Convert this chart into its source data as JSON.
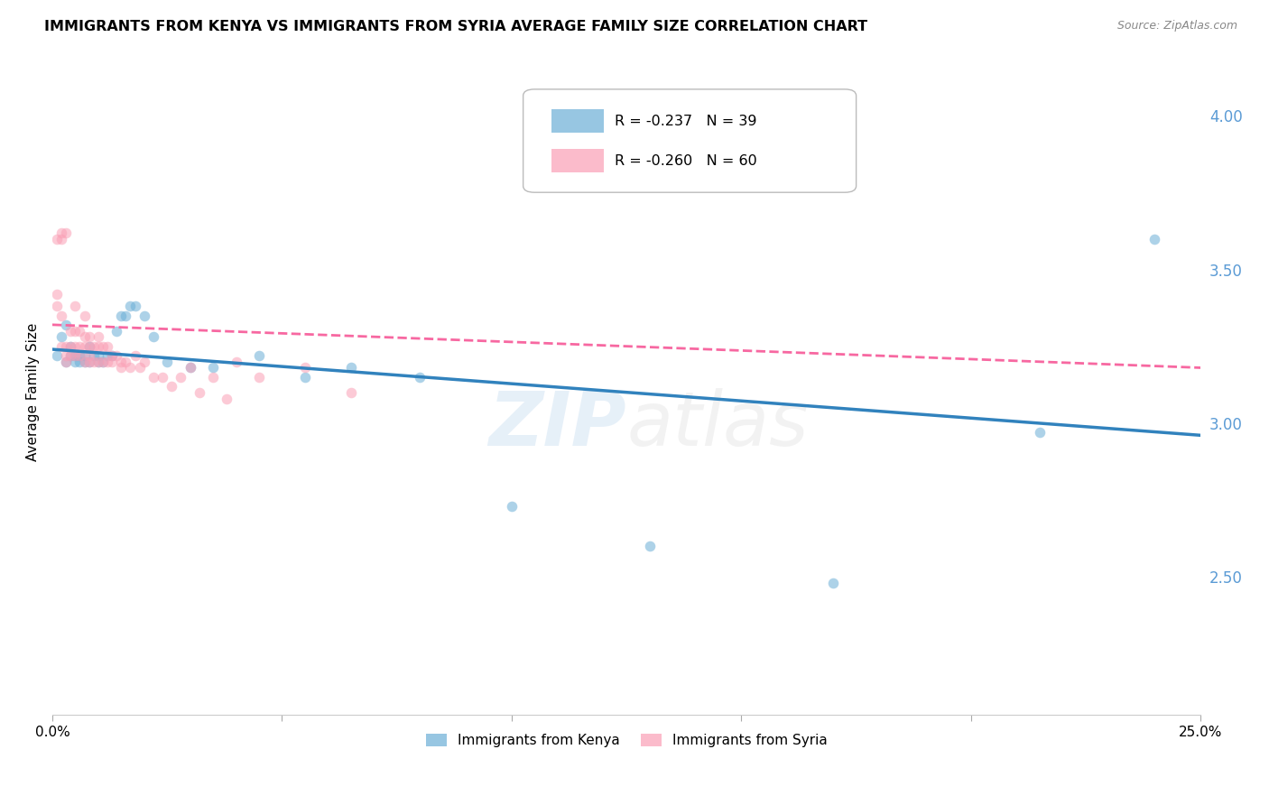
{
  "title": "IMMIGRANTS FROM KENYA VS IMMIGRANTS FROM SYRIA AVERAGE FAMILY SIZE CORRELATION CHART",
  "source": "Source: ZipAtlas.com",
  "ylabel": "Average Family Size",
  "right_yticks": [
    2.5,
    3.0,
    3.5,
    4.0
  ],
  "xlim": [
    0.0,
    0.25
  ],
  "ylim": [
    2.05,
    4.15
  ],
  "kenya_color": "#6baed6",
  "syria_color": "#fa9fb5",
  "kenya_line_color": "#3182bd",
  "syria_line_color": "#f768a1",
  "legend_R_kenya": "R = -0.237",
  "legend_N_kenya": "N = 39",
  "legend_R_syria": "R = -0.260",
  "legend_N_syria": "N = 60",
  "watermark_zip": "ZIP",
  "watermark_atlas": "atlas",
  "kenya_scatter_x": [
    0.001,
    0.002,
    0.003,
    0.003,
    0.004,
    0.004,
    0.005,
    0.005,
    0.006,
    0.006,
    0.007,
    0.007,
    0.008,
    0.008,
    0.009,
    0.01,
    0.01,
    0.011,
    0.012,
    0.013,
    0.014,
    0.015,
    0.016,
    0.017,
    0.018,
    0.02,
    0.022,
    0.025,
    0.03,
    0.035,
    0.045,
    0.055,
    0.065,
    0.08,
    0.1,
    0.13,
    0.17,
    0.215,
    0.24
  ],
  "kenya_scatter_y": [
    3.22,
    3.28,
    3.2,
    3.32,
    3.22,
    3.25,
    3.2,
    3.22,
    3.2,
    3.22,
    3.22,
    3.2,
    3.25,
    3.2,
    3.22,
    3.2,
    3.22,
    3.2,
    3.22,
    3.22,
    3.3,
    3.35,
    3.35,
    3.38,
    3.38,
    3.35,
    3.28,
    3.2,
    3.18,
    3.18,
    3.22,
    3.15,
    3.18,
    3.15,
    2.73,
    2.6,
    2.48,
    2.97,
    3.6
  ],
  "syria_scatter_x": [
    0.001,
    0.001,
    0.001,
    0.002,
    0.002,
    0.002,
    0.002,
    0.003,
    0.003,
    0.003,
    0.003,
    0.004,
    0.004,
    0.004,
    0.005,
    0.005,
    0.005,
    0.005,
    0.006,
    0.006,
    0.006,
    0.007,
    0.007,
    0.007,
    0.007,
    0.008,
    0.008,
    0.008,
    0.008,
    0.009,
    0.009,
    0.01,
    0.01,
    0.01,
    0.011,
    0.011,
    0.012,
    0.012,
    0.013,
    0.013,
    0.014,
    0.015,
    0.015,
    0.016,
    0.017,
    0.018,
    0.019,
    0.02,
    0.022,
    0.024,
    0.026,
    0.028,
    0.03,
    0.032,
    0.035,
    0.038,
    0.04,
    0.045,
    0.055,
    0.065
  ],
  "syria_scatter_y": [
    3.38,
    3.42,
    3.6,
    3.62,
    3.6,
    3.35,
    3.25,
    3.25,
    3.22,
    3.2,
    3.62,
    3.3,
    3.25,
    3.22,
    3.38,
    3.3,
    3.25,
    3.22,
    3.3,
    3.25,
    3.22,
    3.35,
    3.28,
    3.25,
    3.2,
    3.28,
    3.25,
    3.22,
    3.2,
    3.25,
    3.2,
    3.28,
    3.25,
    3.2,
    3.25,
    3.2,
    3.25,
    3.2,
    3.22,
    3.2,
    3.22,
    3.2,
    3.18,
    3.2,
    3.18,
    3.22,
    3.18,
    3.2,
    3.15,
    3.15,
    3.12,
    3.15,
    3.18,
    3.1,
    3.15,
    3.08,
    3.2,
    3.15,
    3.18,
    3.1
  ],
  "kenya_line_x": [
    0.0,
    0.25
  ],
  "kenya_line_y": [
    3.24,
    2.96
  ],
  "syria_line_x": [
    0.0,
    0.25
  ],
  "syria_line_y": [
    3.32,
    3.18
  ],
  "grid_color": "#d0d0d0",
  "title_fontsize": 11.5,
  "label_fontsize": 11,
  "tick_color": "#5b9bd5",
  "scatter_size": 70,
  "scatter_alpha": 0.55,
  "scatter_linewidth": 0.0
}
